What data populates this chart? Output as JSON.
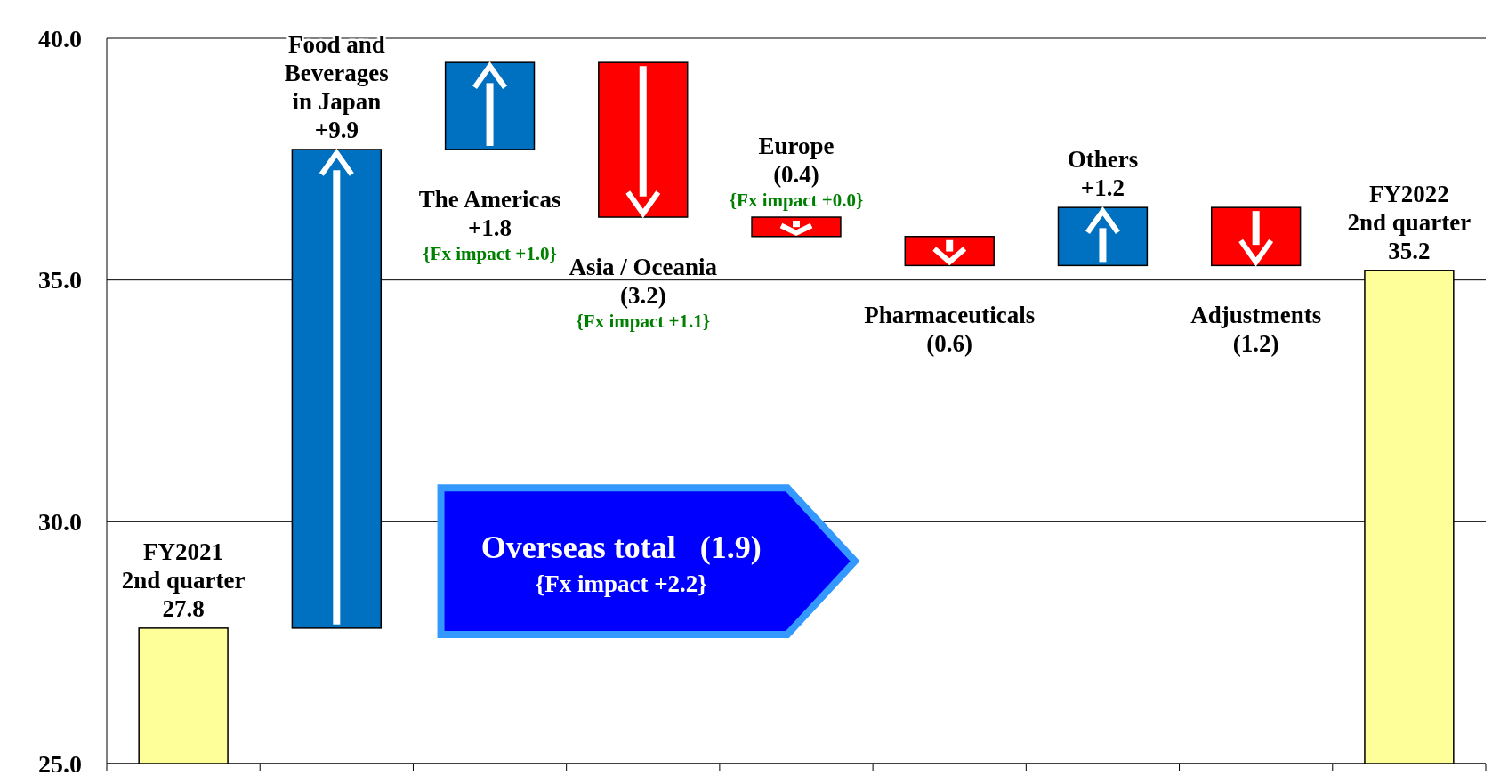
{
  "chart_data": {
    "type": "bar",
    "categories": [
      "FY2021\n2nd quarter",
      "Food and\nBeverages\nin Japan",
      "The Americas",
      "Asia / Oceania",
      "Europe",
      "Pharmaceuticals",
      "Others",
      "Adjustments",
      "FY2022\n2nd quarter"
    ],
    "values": [
      27.8,
      9.9,
      1.8,
      -3.2,
      -0.4,
      -0.6,
      1.2,
      -1.2,
      35.2
    ],
    "base": [
      null,
      27.8,
      37.7,
      39.5,
      36.3,
      35.9,
      35.3,
      36.5,
      null
    ],
    "colors": [
      "#ffff99",
      "#0070c0",
      "#0070c0",
      "#ff0000",
      "#ff0000",
      "#ff0000",
      "#0070c0",
      "#ff0000",
      "#ffff99"
    ],
    "value_labels": [
      "27.8",
      "+9.9",
      "+1.8",
      "(3.2)",
      "(0.4)",
      "(0.6)",
      "+1.2",
      "(1.2)",
      "35.2"
    ],
    "ylim": [
      25,
      40
    ],
    "yticks": [
      {
        "value": 25,
        "label": "25.0"
      },
      {
        "value": 30,
        "label": "30.0"
      },
      {
        "value": 35,
        "label": "35.0"
      },
      {
        "value": 40,
        "label": "40.0"
      }
    ],
    "grid": "y",
    "annotations": [
      "{Fx impact +1.0}",
      "{Fx impact +1.1}",
      "{Fx impact +0.0}",
      "Overseas total   (1.9)",
      "{Fx impact +2.2}"
    ]
  }
}
